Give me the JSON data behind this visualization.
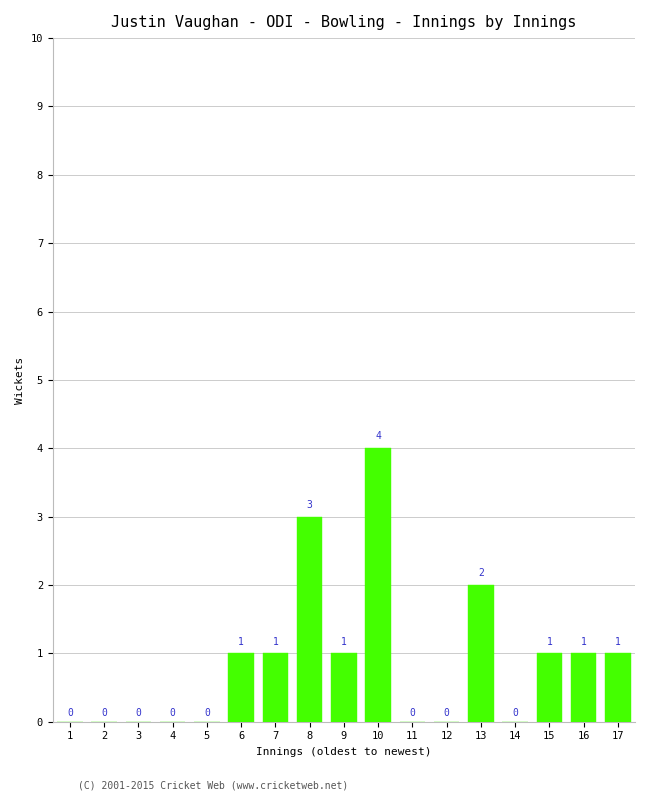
{
  "title": "Justin Vaughan - ODI - Bowling - Innings by Innings",
  "xlabel": "Innings (oldest to newest)",
  "ylabel": "Wickets",
  "innings": [
    1,
    2,
    3,
    4,
    5,
    6,
    7,
    8,
    9,
    10,
    11,
    12,
    13,
    14,
    15,
    16,
    17
  ],
  "wickets": [
    0,
    0,
    0,
    0,
    0,
    1,
    1,
    3,
    1,
    4,
    0,
    0,
    2,
    0,
    1,
    1,
    1
  ],
  "bar_color": "#44ff00",
  "bar_edge_color": "#44ff00",
  "label_color": "#3333cc",
  "background_color": "#ffffff",
  "grid_color": "#cccccc",
  "ylim": [
    0,
    10
  ],
  "yticks": [
    0,
    1,
    2,
    3,
    4,
    5,
    6,
    7,
    8,
    9,
    10
  ],
  "title_fontsize": 11,
  "axis_label_fontsize": 8,
  "tick_fontsize": 7.5,
  "label_fontsize": 7,
  "footer": "(C) 2001-2015 Cricket Web (www.cricketweb.net)",
  "footer_fontsize": 7
}
